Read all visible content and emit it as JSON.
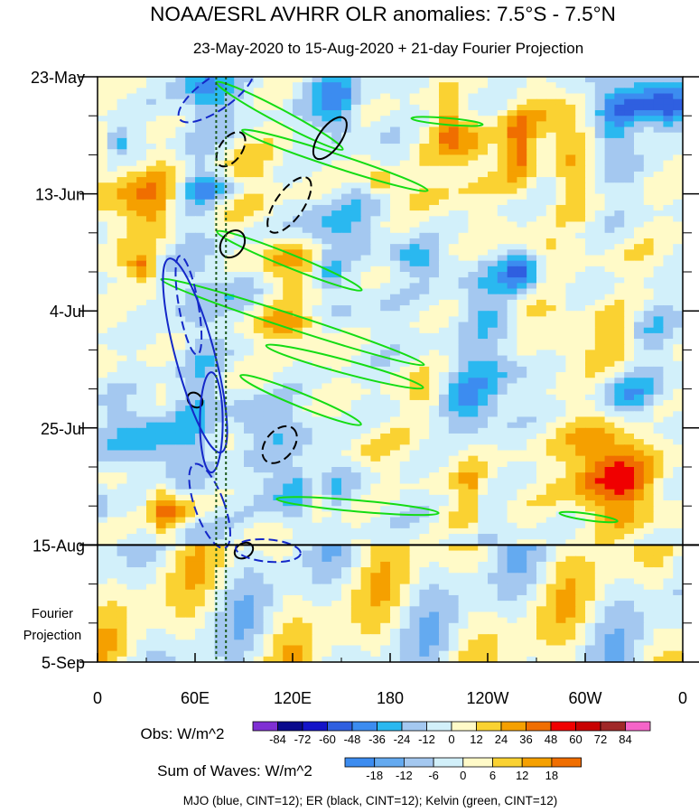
{
  "chart_data": {
    "type": "heatmap",
    "title": "NOAA/ESRL AVHRR OLR anomalies: 7.5°S - 7.5°N",
    "subtitle": "23-May-2020 to 15-Aug-2020 + 21-day Fourier Projection",
    "x_tick_labels": [
      "0",
      "60E",
      "120E",
      "180",
      "120W",
      "60W",
      "0"
    ],
    "x_ticks_lon": [
      0,
      60,
      120,
      180,
      240,
      300,
      360
    ],
    "xlim": [
      0,
      360
    ],
    "y_tick_labels": [
      "23-May",
      "13-Jun",
      "4-Jul",
      "25-Jul",
      "15-Aug",
      "5-Sep"
    ],
    "y_ticks_day": [
      0,
      21,
      42,
      63,
      84,
      105
    ],
    "ylim_days": [
      0,
      105
    ],
    "y_reversed": true,
    "observation_end_day": 84,
    "projection_label": "Fourier\nProjection",
    "reference_lines_lon": [
      73,
      79
    ],
    "obs_colorbar": {
      "label": "Obs: W/m^2",
      "tick_labels": [
        "-84",
        "-72",
        "-60",
        "-48",
        "-36",
        "-24",
        "-12",
        "0",
        "12",
        "24",
        "36",
        "48",
        "60",
        "72",
        "84"
      ],
      "colors": [
        "#7f2fd3",
        "#0a0a8c",
        "#1414c8",
        "#2f5fe0",
        "#3c8cf0",
        "#2ab8f0",
        "#a4c8f0",
        "#d2f0fa",
        "#fffac8",
        "#fad232",
        "#f5a000",
        "#f06e00",
        "#f00000",
        "#c80000",
        "#a02828",
        "#f564c8"
      ]
    },
    "waves_colorbar": {
      "label": "Sum of Waves: W/m^2",
      "tick_labels": [
        "-18",
        "-12",
        "-6",
        "0",
        "6",
        "12",
        "18"
      ],
      "colors": [
        "#3c8cf0",
        "#64aaf0",
        "#a4c8f0",
        "#d2f0fa",
        "#fffac8",
        "#fad232",
        "#f5a000",
        "#f06e00"
      ]
    },
    "footnote": "MJO (blue, CINT=12); ER (black, CINT=12); Kelvin (green, CINT=12)",
    "contour_colors": {
      "mjo": "#1428c8",
      "er": "#000000",
      "kelvin": "#14dc14"
    },
    "mjo_contours": [
      {
        "lon": 73,
        "day": 3,
        "rx": 10,
        "ry": 8,
        "angle": 55,
        "sign": "neg"
      },
      {
        "lon": 60,
        "day": 50,
        "rx": 12,
        "ry": 18,
        "angle": -15,
        "sign": "pos"
      },
      {
        "lon": 70,
        "day": 62,
        "rx": 7,
        "ry": 9,
        "angle": 0,
        "sign": "pos"
      },
      {
        "lon": 56,
        "day": 41,
        "rx": 6,
        "ry": 9,
        "angle": -10,
        "sign": "neg"
      },
      {
        "lon": 69,
        "day": 77,
        "rx": 9,
        "ry": 8,
        "angle": -20,
        "sign": "neg"
      },
      {
        "lon": 105,
        "day": 85,
        "rx": 20,
        "ry": 2,
        "angle": 5,
        "sign": "neg"
      }
    ],
    "er_contours": [
      {
        "lon": 118,
        "day": 23,
        "rx": 20,
        "ry": 2.5,
        "angle": -55,
        "sign": "neg"
      },
      {
        "lon": 143,
        "day": 11,
        "rx": 15,
        "ry": 2,
        "angle": -55,
        "sign": "pos"
      },
      {
        "lon": 82,
        "day": 13,
        "rx": 12,
        "ry": 2,
        "angle": -55,
        "sign": "neg"
      },
      {
        "lon": 83,
        "day": 30,
        "rx": 9,
        "ry": 2,
        "angle": -55,
        "sign": "pos"
      },
      {
        "lon": 112,
        "day": 66,
        "rx": 13,
        "ry": 2.5,
        "angle": -50,
        "sign": "neg"
      },
      {
        "lon": 60,
        "day": 58,
        "rx": 4,
        "ry": 1.5,
        "angle": -45,
        "sign": "pos"
      },
      {
        "lon": 90,
        "day": 85,
        "rx": 6,
        "ry": 1.3,
        "angle": -30,
        "sign": "pos"
      }
    ],
    "kelvin_contours": [
      {
        "lon": 112,
        "day": 7,
        "rx": 44,
        "ry": 1.2,
        "angle": 28,
        "sign": "pos"
      },
      {
        "lon": 146,
        "day": 15,
        "rx": 60,
        "ry": 1.2,
        "angle": 18,
        "sign": "pos"
      },
      {
        "lon": 118,
        "day": 33,
        "rx": 48,
        "ry": 1.2,
        "angle": 22,
        "sign": "pos"
      },
      {
        "lon": 120,
        "day": 44,
        "rx": 85,
        "ry": 1.3,
        "angle": 18,
        "sign": "pos"
      },
      {
        "lon": 125,
        "day": 58,
        "rx": 40,
        "ry": 1.2,
        "angle": 22,
        "sign": "pos"
      },
      {
        "lon": 152,
        "day": 52,
        "rx": 50,
        "ry": 1.2,
        "angle": 15,
        "sign": "pos"
      },
      {
        "lon": 160,
        "day": 77,
        "rx": 50,
        "ry": 1.0,
        "angle": 5,
        "sign": "pos"
      },
      {
        "lon": 215,
        "day": 8,
        "rx": 22,
        "ry": 0.6,
        "angle": 5,
        "sign": "pos"
      },
      {
        "lon": 302,
        "day": 79,
        "rx": 18,
        "ry": 0.6,
        "angle": 8,
        "sign": "pos"
      }
    ]
  }
}
